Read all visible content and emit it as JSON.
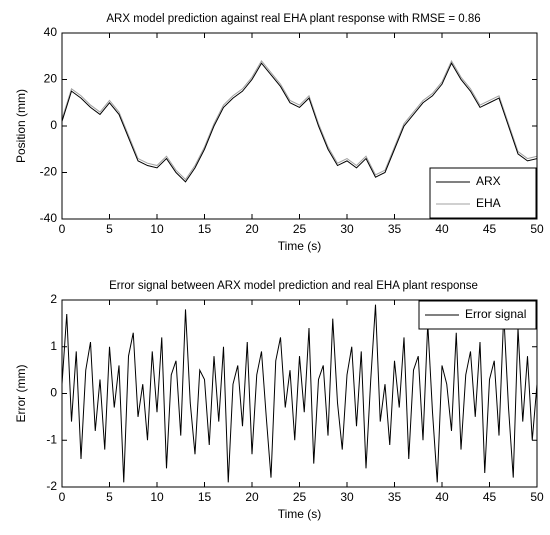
{
  "chart_data": [
    {
      "type": "line",
      "title": "ARX model prediction against real EHA plant response with RMSE = 0.86",
      "xlabel": "Time (s)",
      "ylabel": "Position (mm)",
      "x": [
        0,
        1,
        2,
        3,
        4,
        5,
        6,
        7,
        8,
        9,
        10,
        11,
        12,
        13,
        14,
        15,
        16,
        17,
        18,
        19,
        20,
        21,
        22,
        23,
        24,
        25,
        26,
        27,
        28,
        29,
        30,
        31,
        32,
        33,
        34,
        35,
        36,
        37,
        38,
        39,
        40,
        41,
        42,
        43,
        44,
        45,
        46,
        47,
        48,
        49,
        50
      ],
      "series": [
        {
          "name": "ARX",
          "color": "#000000",
          "values": [
            2,
            15,
            12,
            8,
            5,
            10,
            5,
            -5,
            -15,
            -17,
            -18,
            -14,
            -20,
            -24,
            -18,
            -10,
            0,
            8,
            12,
            15,
            20,
            27,
            22,
            17,
            10,
            8,
            12,
            0,
            -10,
            -17,
            -15,
            -18,
            -14,
            -22,
            -20,
            -10,
            0,
            5,
            10,
            13,
            18,
            27,
            20,
            15,
            8,
            10,
            12,
            0,
            -12,
            -15,
            -14
          ]
        },
        {
          "name": "EHA",
          "color": "#a0a0a0",
          "values": [
            3,
            16,
            13,
            9,
            6,
            11,
            6,
            -4,
            -14,
            -16,
            -17,
            -13,
            -19,
            -23,
            -17,
            -9,
            1,
            9,
            13,
            16,
            21,
            28,
            23,
            18,
            11,
            9,
            13,
            1,
            -9,
            -16,
            -14,
            -17,
            -13,
            -21,
            -19,
            -9,
            1,
            6,
            11,
            14,
            19,
            28,
            21,
            16,
            9,
            11,
            13,
            1,
            -11,
            -14,
            -13
          ]
        }
      ],
      "xlim": [
        0,
        50
      ],
      "xticks": [
        0,
        5,
        10,
        15,
        20,
        25,
        30,
        35,
        40,
        45,
        50
      ],
      "ylim": [
        -40,
        40
      ],
      "yticks": [
        -40,
        -20,
        0,
        20,
        40
      ],
      "legend": "lower right"
    },
    {
      "type": "line",
      "title": "Error signal between ARX model prediction and real EHA plant response",
      "xlabel": "Time (s)",
      "ylabel": "Error (mm)",
      "x": [
        0,
        0.5,
        1,
        1.5,
        2,
        2.5,
        3,
        3.5,
        4,
        4.5,
        5,
        5.5,
        6,
        6.5,
        7,
        7.5,
        8,
        8.5,
        9,
        9.5,
        10,
        10.5,
        11,
        11.5,
        12,
        12.5,
        13,
        13.5,
        14,
        14.5,
        15,
        15.5,
        16,
        16.5,
        17,
        17.5,
        18,
        18.5,
        19,
        19.5,
        20,
        20.5,
        21,
        21.5,
        22,
        22.5,
        23,
        23.5,
        24,
        24.5,
        25,
        25.5,
        26,
        26.5,
        27,
        27.5,
        28,
        28.5,
        29,
        29.5,
        30,
        30.5,
        31,
        31.5,
        32,
        32.5,
        33,
        33.5,
        34,
        34.5,
        35,
        35.5,
        36,
        36.5,
        37,
        37.5,
        38,
        38.5,
        39,
        39.5,
        40,
        40.5,
        41,
        41.5,
        42,
        42.5,
        43,
        43.5,
        44,
        44.5,
        45,
        45.5,
        46,
        46.5,
        47,
        47.5,
        48,
        48.5,
        49,
        49.5,
        50
      ],
      "series": [
        {
          "name": "Error signal",
          "color": "#000000",
          "values": [
            0.2,
            1.7,
            -0.6,
            0.9,
            -1.4,
            0.5,
            1.1,
            -0.8,
            0.3,
            -1.2,
            1.0,
            -0.3,
            0.6,
            -1.9,
            0.8,
            1.3,
            -0.5,
            0.2,
            -1.0,
            0.9,
            -0.4,
            1.2,
            -1.6,
            0.4,
            0.7,
            -0.9,
            1.8,
            -0.2,
            -1.3,
            0.5,
            0.3,
            -1.1,
            0.8,
            -0.6,
            1.0,
            -1.9,
            0.2,
            0.6,
            -0.7,
            1.1,
            -1.3,
            0.4,
            0.9,
            -0.5,
            -1.8,
            0.7,
            1.2,
            -0.3,
            0.5,
            -1.0,
            0.8,
            -0.4,
            1.4,
            -1.5,
            0.3,
            0.6,
            -0.9,
            1.6,
            -0.2,
            -1.2,
            0.4,
            1.0,
            -0.7,
            0.9,
            -1.6,
            0.3,
            1.9,
            -0.6,
            0.2,
            -1.1,
            0.7,
            -0.3,
            1.2,
            -1.4,
            0.5,
            0.8,
            -1.0,
            1.5,
            -0.4,
            -1.9,
            0.6,
            0.2,
            -0.8,
            1.3,
            -1.2,
            0.4,
            0.9,
            -0.5,
            1.1,
            -1.7,
            0.3,
            0.7,
            -0.9,
            1.7,
            -0.3,
            -1.8,
            1.4,
            -0.6,
            0.8,
            -1.0,
            0.2
          ]
        }
      ],
      "xlim": [
        0,
        50
      ],
      "xticks": [
        0,
        5,
        10,
        15,
        20,
        25,
        30,
        35,
        40,
        45,
        50
      ],
      "ylim": [
        -2,
        2
      ],
      "yticks": [
        -2,
        -1,
        0,
        1,
        2
      ],
      "legend": "upper right"
    }
  ]
}
